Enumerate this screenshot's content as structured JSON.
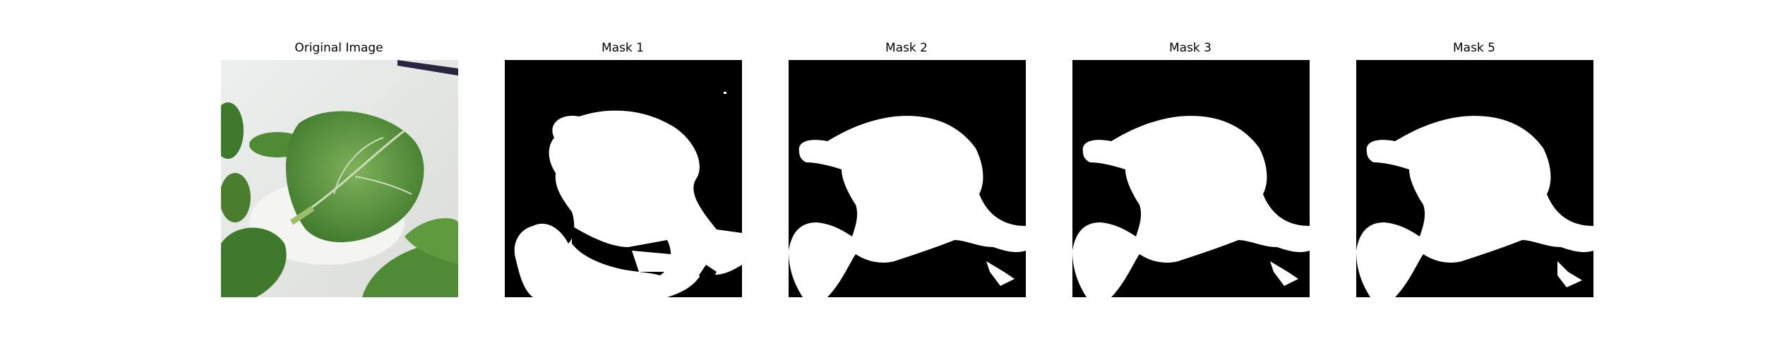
{
  "panels": [
    {
      "title": "Original Image"
    },
    {
      "title": "Mask 1"
    },
    {
      "title": "Mask 2"
    },
    {
      "title": "Mask 3"
    },
    {
      "title": "Mask 5"
    }
  ],
  "colors": {
    "background": "#ffffff",
    "mask_background": "#000000",
    "mask_foreground": "#ffffff",
    "leaf_green": "#5e9a3e",
    "leaf_dark": "#2f5f22"
  }
}
